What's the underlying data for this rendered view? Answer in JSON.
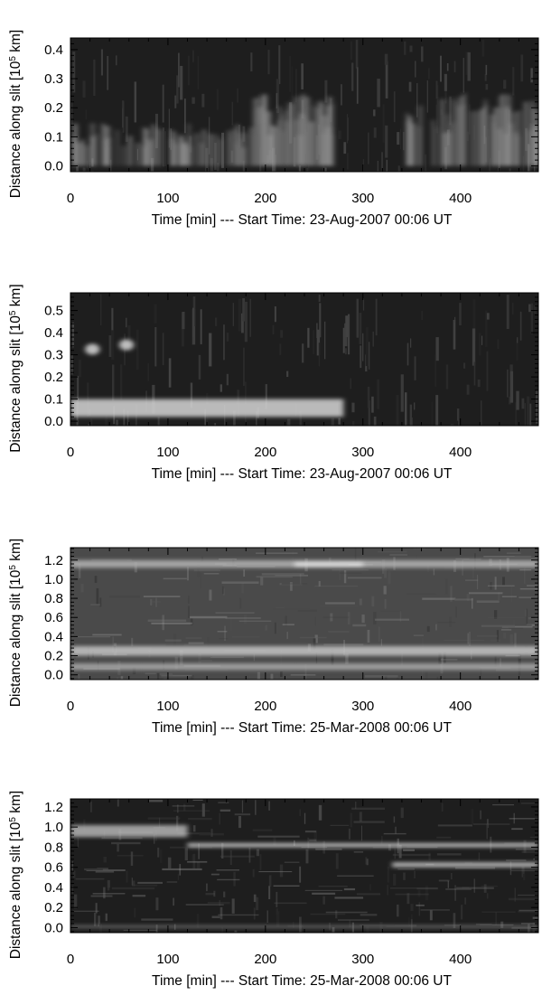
{
  "chart_data": [
    {
      "type": "heatmap",
      "colormap": "grayscale",
      "xlabel": "Time [min] --- Start Time: 23-Aug-2007 00:06 UT",
      "ylabel": "Distance along slit [10^5 km]",
      "xlim": [
        0,
        480
      ],
      "ylim": [
        -0.02,
        0.44
      ],
      "x_ticks": [
        "0",
        "100",
        "200",
        "300",
        "400"
      ],
      "y_ticks": [
        "0.0",
        "0.1",
        "0.2",
        "0.3",
        "0.4"
      ],
      "features": [
        {
          "kind": "diffuse_bright",
          "x": [
            0,
            180
          ],
          "y": [
            0.0,
            0.15
          ],
          "intensity": 0.55
        },
        {
          "kind": "diffuse_bright",
          "x": [
            180,
            270
          ],
          "y": [
            0.0,
            0.25
          ],
          "intensity": 0.5
        },
        {
          "kind": "diffuse_bright",
          "x": [
            330,
            480
          ],
          "y": [
            0.0,
            0.25
          ],
          "intensity": 0.5
        }
      ]
    },
    {
      "type": "heatmap",
      "colormap": "grayscale",
      "xlabel": "Time [min] --- Start Time: 23-Aug-2007 00:06 UT",
      "ylabel": "Distance along slit [10^5 km]",
      "xlim": [
        0,
        480
      ],
      "ylim": [
        -0.02,
        0.58
      ],
      "x_ticks": [
        "0",
        "100",
        "200",
        "300",
        "400"
      ],
      "y_ticks": [
        "0.0",
        "0.1",
        "0.2",
        "0.3",
        "0.4",
        "0.5"
      ],
      "features": [
        {
          "kind": "bright_band",
          "x": [
            0,
            280
          ],
          "y": [
            0.02,
            0.1
          ],
          "intensity": 0.75
        },
        {
          "kind": "bright_spot",
          "x": [
            15,
            30
          ],
          "y": [
            0.3,
            0.35
          ],
          "intensity": 0.6
        },
        {
          "kind": "bright_spot",
          "x": [
            50,
            65
          ],
          "y": [
            0.32,
            0.37
          ],
          "intensity": 0.6
        }
      ]
    },
    {
      "type": "heatmap",
      "colormap": "grayscale",
      "xlabel": "Time [min] --- Start Time: 25-Mar-2008 00:06 UT",
      "ylabel": "Distance along slit [10^5 km]",
      "xlim": [
        0,
        480
      ],
      "ylim": [
        -0.05,
        1.33
      ],
      "x_ticks": [
        "0",
        "100",
        "200",
        "300",
        "400"
      ],
      "y_ticks": [
        "0.0",
        "0.2",
        "0.4",
        "0.6",
        "0.8",
        "1.0",
        "1.2"
      ],
      "features": [
        {
          "kind": "bright_band",
          "x": [
            0,
            480
          ],
          "y": [
            1.12,
            1.2
          ],
          "intensity": 0.55
        },
        {
          "kind": "bright_band",
          "x": [
            230,
            300
          ],
          "y": [
            1.13,
            1.18
          ],
          "intensity": 0.85
        },
        {
          "kind": "bright_band",
          "x": [
            0,
            480
          ],
          "y": [
            0.2,
            0.3
          ],
          "intensity": 0.65
        },
        {
          "kind": "bright_band",
          "x": [
            0,
            480
          ],
          "y": [
            0.05,
            0.12
          ],
          "intensity": 0.5
        }
      ]
    },
    {
      "type": "heatmap",
      "colormap": "grayscale",
      "xlabel": "Time [min] --- Start Time: 25-Mar-2008 00:06 UT",
      "ylabel": "Distance along slit [10^5 km]",
      "xlim": [
        0,
        480
      ],
      "ylim": [
        -0.05,
        1.28
      ],
      "x_ticks": [
        "0",
        "100",
        "200",
        "300",
        "400"
      ],
      "y_ticks": [
        "0.0",
        "0.2",
        "0.4",
        "0.6",
        "0.8",
        "1.0",
        "1.2"
      ],
      "features": [
        {
          "kind": "bright_band",
          "x": [
            0,
            120
          ],
          "y": [
            0.9,
            1.02
          ],
          "intensity": 0.55
        },
        {
          "kind": "bright_band",
          "x": [
            120,
            480
          ],
          "y": [
            0.8,
            0.84
          ],
          "intensity": 0.75
        },
        {
          "kind": "bright_band",
          "x": [
            330,
            480
          ],
          "y": [
            0.6,
            0.65
          ],
          "intensity": 0.65
        },
        {
          "kind": "bright_band",
          "x": [
            0,
            480
          ],
          "y": [
            0.0,
            0.02
          ],
          "intensity": 0.35
        }
      ]
    }
  ]
}
